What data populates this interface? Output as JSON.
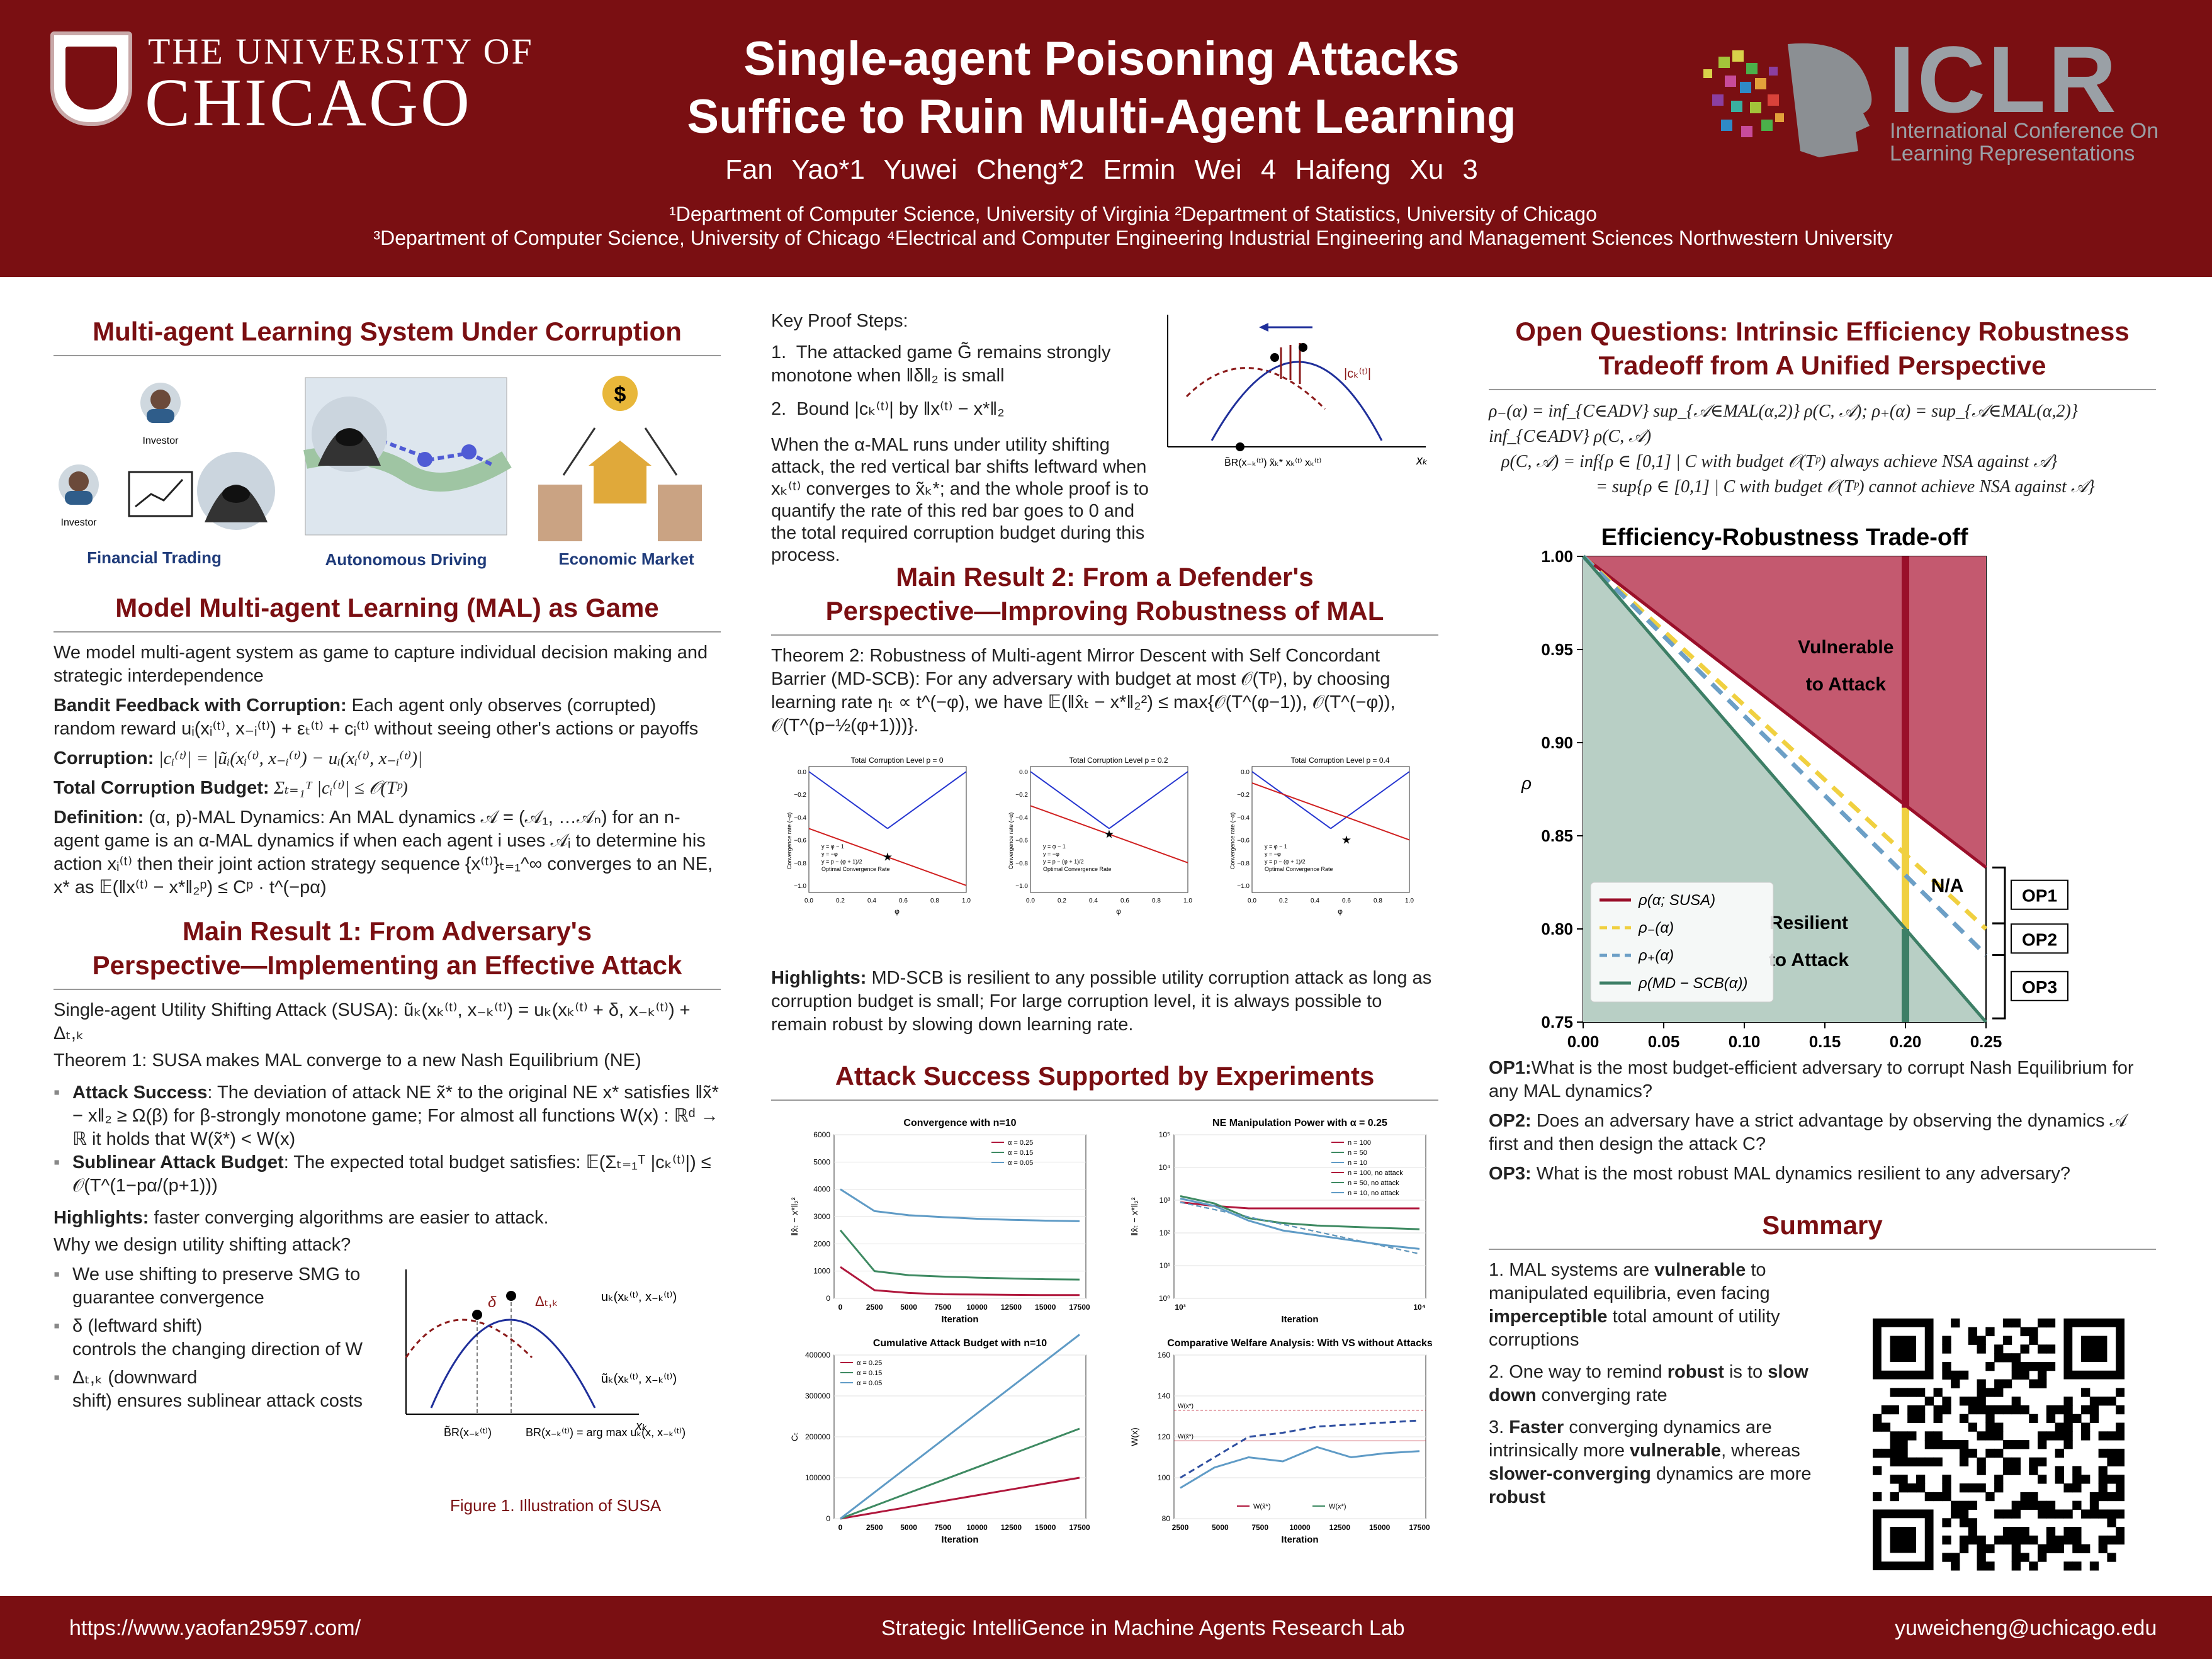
{
  "header": {
    "uni_top": "THE UNIVERSITY OF",
    "uni_big": "CHICAGO",
    "title_l1": "Single-agent Poisoning Attacks",
    "title_l2": "Suffice to Ruin Multi-Agent Learning",
    "authors": "Fan Yao*1   Yuwei Cheng*2   Ermin Wei 4   Haifeng Xu 3",
    "aff_line1": "¹Department of Computer Science, University of Virginia       ²Department of Statistics, University of Chicago",
    "aff_line2": "³Department of Computer Science, University of Chicago       ⁴Electrical and Computer Engineering Industrial Engineering and Management Sciences Northwestern University",
    "iclr": "ICLR",
    "iclr_sub1": "International Conference On",
    "iclr_sub2": "Learning Representations"
  },
  "col1": {
    "s1_title": "Multi-agent Learning System Under Corruption",
    "investor": "Investor",
    "fin": "Financial Trading",
    "auto": "Autonomous Driving",
    "econ": "Economic Market",
    "s2_title": "Model Multi-agent Learning (MAL) as Game",
    "s2_p1": "We model multi-agent system as game to capture individual decision making and strategic interdependence",
    "bandit_h": "Bandit Feedback with Corruption:",
    "bandit_t": " Each agent only observes (corrupted) random reward uᵢ(xᵢ⁽ᵗ⁾, x₋ᵢ⁽ᵗ⁾) + εₜ⁽ᵗ⁾ + cᵢ⁽ᵗ⁾ without seeing other's actions or payoffs",
    "corr_h": "Corruption:",
    "corr_t": " |cᵢ⁽ᵗ⁾| = |ũᵢ(xᵢ⁽ᵗ⁾, x₋ᵢ⁽ᵗ⁾) − uᵢ(xᵢ⁽ᵗ⁾, x₋ᵢ⁽ᵗ⁾)|",
    "tcb_h": "Total Corruption Budget:",
    "tcb_t": " Σₜ₌₁ᵀ |cᵢ⁽ᵗ⁾| ≤ 𝒪(Tᵖ)",
    "def_h": "Definition:",
    "def_t": " (α, p)-MAL Dynamics: An MAL dynamics 𝒜 = (𝒜₁, …𝒜ₙ) for an n-agent game is an α-MAL dynamics if when each agent i uses 𝒜ᵢ to determine his action xᵢ⁽ᵗ⁾ then their joint action strategy sequence {x⁽ᵗ⁾}ₜ₌₁^∞ converges to an NE, x* as 𝔼(‖x⁽ᵗ⁾ − x*‖₂ᵖ) ≤ Cᵖ · t^(−pα)",
    "s3_title_l1": "Main Result 1: From Adversary's",
    "s3_title_l2": "Perspective—Implementing an Effective Attack",
    "susa": "Single-agent Utility Shifting Attack (SUSA): ũₖ(xₖ⁽ᵗ⁾, x₋ₖ⁽ᵗ⁾) = uₖ(xₖ⁽ᵗ⁾ + δ, x₋ₖ⁽ᵗ⁾) + Δₜ,ₖ",
    "thm1": "Theorem 1: SUSA makes MAL converge to a new Nash Equilibrium (NE)",
    "b1_h": "Attack Success",
    "b1_t": ": The deviation of attack NE x̃* to the original NE x* satisfies ‖x̃* − x‖₂ ≥ Ω(β) for β-strongly monotone game; For almost all functions W(x) : ℝᵈ → ℝ it holds that W(x̃*) < W(x)",
    "b2_h": "Sublinear Attack Budget",
    "b2_t": ": The expected total budget satisfies: 𝔼(Σₜ₌₁ᵀ |cₖ⁽ᵗ⁾|) ≤ 𝒪(T^(1−pα/(p+1)))",
    "hl_h": "Highlights:",
    "hl_t": " faster converging algorithms are easier to attack.",
    "why": "Why we design utility shifting attack?",
    "w1": "We use shifting to preserve SMG to guarantee convergence",
    "w2a": "δ (leftward shift)",
    "w2b": "controls the changing direction of W",
    "w3a": "Δₜ,ₖ (downward",
    "w3b": "shift) ensures sublinear attack costs",
    "fig_delta": "δ",
    "fig_Delta": "Δₜ,ₖ",
    "fig_u": "uₖ(xₖ⁽ᵗ⁾, x₋ₖ⁽ᵗ⁾)",
    "fig_ut": "ũₖ(xₖ⁽ᵗ⁾, x₋ₖ⁽ᵗ⁾)",
    "fig_xk": "xₖ",
    "fig_br1": "B̃R(x₋ₖ⁽ᵗ⁾)",
    "fig_br2": "BR(x₋ₖ⁽ᵗ⁾) = arg max uₖ(x, x₋ₖ⁽ᵗ⁾)",
    "fig_caption": "Figure 1. Illustration of SUSA"
  },
  "col2": {
    "kps": "Key Proof Steps:",
    "k1": "The attacked game G̃ remains strongly monotone when ‖δ‖₂ is small",
    "k2": "Bound |cₖ⁽ᵗ⁾| by ‖x⁽ᵗ⁾ − x*‖₂",
    "k_para": "When the α-MAL runs under utility shifting attack, the red vertical bar shifts leftward when xₖ⁽ᵗ⁾ converges to x̃ₖ*; and the whole proof is to quantify the rate of this red bar goes to 0 and the total required corruption budget during this process.",
    "kfig_c": "|cₖ⁽ᵗ⁾|",
    "kfig_xk": "xₖ",
    "kfig_ticks": "B̃R(x₋ₖ⁽ᵗ⁾) x̃ₖ*  xₖ⁽ᵗ⁾  xₖ⁽ᵗ⁾",
    "s4_l1": "Main Result 2: From a Defender's",
    "s4_l2": "Perspective—Improving Robustness of MAL",
    "thm2_h": "Theorem 2: Robustness of Multi-agent Mirror Descent with Self Concordant Barrier (MD-SCB)",
    "thm2_t": ": For any adversary with budget at most 𝒪(Tᵖ), by choosing learning rate ηₜ ∝ t^(−φ), we have 𝔼(‖x̂ₜ − x*‖₂²) ≤ max{𝒪(T^(φ−1)), 𝒪(T^(−φ)), 𝒪(T^(p−½(φ+1)))}.",
    "hl2_h": "Highlights:",
    "hl2_t": " MD-SCB is resilient to any possible utility corruption attack as long as corruption budget is small; For large corruption level, it is always possible to remain robust by slowing down learning rate.",
    "s5_title": "Attack Success Supported by Experiments",
    "mini_titles": [
      "Total Corruption Level p = 0",
      "Total Corruption Level p = 0.2",
      "Total Corruption Level p = 0.4"
    ],
    "mini_legend": [
      "y = φ − 1",
      "y = −φ",
      "y = p − (φ + 1)/2",
      "Optimal Convergence Rate"
    ],
    "mini_xlabel": "φ",
    "mini_ylabel": "Convergence rate (−α)",
    "mini_yticks": [
      "0.0",
      "−0.2",
      "−0.4",
      "−0.6",
      "−0.8",
      "−1.0"
    ],
    "mini_xticks": [
      "0.0",
      "0.2",
      "0.4",
      "0.6",
      "0.8",
      "1.0"
    ],
    "e1_title": "Convergence with n=10",
    "e1_legend": [
      "α = 0.25",
      "α = 0.15",
      "α = 0.05"
    ],
    "e1_yticks": [
      "6000",
      "5000",
      "4000",
      "3000",
      "2000",
      "1000",
      "0"
    ],
    "e1_ylabel": "‖x̂ₜ − x*‖₂²",
    "e2_title": "NE Manipulation Power with α = 0.25",
    "e2_legend": [
      "n = 100",
      "n = 50",
      "n = 10",
      "n = 100, no attack",
      "n = 50, no attack",
      "n = 10, no attack"
    ],
    "e2_yticks": [
      "10⁵",
      "10⁴",
      "10³",
      "10²",
      "10¹",
      "10⁰"
    ],
    "e2_xticks": [
      "10³",
      "10⁴"
    ],
    "e2_ylabel": "‖x̂ₜ − x*‖₂²",
    "e3_title": "Cumulative Attack Budget with n=10",
    "e3_legend": [
      "α = 0.25",
      "α = 0.15",
      "α = 0.05"
    ],
    "e3_yticks": [
      "400000",
      "300000",
      "200000",
      "100000",
      "0"
    ],
    "e3_ylabel": "Cₜ",
    "e4_title": "Comparative Welfare Analysis: With VS without Attacks",
    "e4_legend": [
      "W(x̃*)",
      "W(x*)"
    ],
    "e4_yticks": [
      "160",
      "140",
      "120",
      "100",
      "80"
    ],
    "e4_ylabel": "W(x)",
    "e4_ann1": "W(x*)",
    "e4_ann2": "W(x̃*)",
    "exp_xticks": [
      "2500",
      "5000",
      "7500",
      "10000",
      "12500",
      "15000",
      "17500"
    ],
    "exp_xticks0": [
      "0",
      "2500",
      "5000",
      "7500",
      "10000",
      "12500",
      "15000",
      "17500"
    ],
    "exp_xlabel": "Iteration"
  },
  "col3": {
    "s6_l1": "Open Questions: Intrinsic Efficiency Robustness",
    "s6_l2": "Tradeoff from A Unified Perspective",
    "eq1": "ρ₋(α) = inf_{C∈ADV} sup_{𝒜∈MAL(α,2)} ρ(C, 𝒜);  ρ₊(α) = sup_{𝒜∈MAL(α,2)} inf_{C∈ADV} ρ(C, 𝒜)",
    "eq2": "ρ(C, 𝒜) = inf{ρ ∈ [0,1] | C with budget 𝒪(Tᵖ) always achieve NSA against 𝒜}",
    "eq3": "= sup{ρ ∈ [0,1] | C with budget 𝒪(Tᵖ) cannot achieve NSA against 𝒜}",
    "chart_title": "Efficiency-Robustness Trade-off",
    "vuln_l1": "Vulnerable",
    "vuln_l2": "to Attack",
    "res_l1": "Resilient",
    "res_l2": "to Attack",
    "na": "N/A",
    "op1_lbl": "OP1",
    "op2_lbl": "OP2",
    "op3_lbl": "OP3",
    "x_axis": "α",
    "y_axis": "ρ",
    "xticks": [
      "0.00",
      "0.05",
      "0.10",
      "0.15",
      "0.20",
      "0.25"
    ],
    "yticks": [
      "1.00",
      "0.95",
      "0.90",
      "0.85",
      "0.80",
      "0.75"
    ],
    "legend": [
      "ρ(α; SUSA)",
      "ρ₋(α)",
      "ρ₊(α)",
      "ρ(MD − SCB(α))"
    ],
    "op1_h": "OP1:",
    "op1_t": "What is the most budget-efficient adversary to corrupt Nash Equilibrium for any MAL dynamics?",
    "op2_h": "OP2:",
    "op2_t": " Does an adversary have a strict advantage by observing the dynamics 𝒜 first and then design the attack C?",
    "op3_h": "OP3:",
    "op3_t": " What is the most robust MAL dynamics resilient to any adversary?",
    "sum_title": "Summary",
    "sum1a": "1. MAL systems are ",
    "sum1b": "vulnerable",
    "sum1c": " to manipulated equilibria, even facing ",
    "sum1d": "imperceptible",
    "sum1e": " total amount of utility corruptions",
    "sum2a": "2.  One way to remind ",
    "sum2b": "robust",
    "sum2c": " is to ",
    "sum2d": "slow down",
    "sum2e": " converging rate",
    "sum3a": "3.  ",
    "sum3b": "Faster",
    "sum3c": " converging dynamics are intrinsically more ",
    "sum3d": "vulnerable",
    "sum3e": ", whereas ",
    "sum3f": "slower-converging",
    "sum3g": " dynamics are more ",
    "sum3h": "robust"
  },
  "chart_data": {
    "type": "area",
    "title": "Efficiency-Robustness Trade-off",
    "xlabel": "α",
    "ylabel": "ρ",
    "xlim": [
      0,
      0.25
    ],
    "ylim": [
      0.75,
      1.0
    ],
    "series": [
      {
        "name": "ρ(α; SUSA)",
        "x": [
          0,
          0.25
        ],
        "y": [
          1.0,
          0.833
        ]
      },
      {
        "name": "ρ₋(α)",
        "x": [
          0,
          0.25
        ],
        "y": [
          1.0,
          0.8
        ]
      },
      {
        "name": "ρ₊(α)",
        "x": [
          0,
          0.25
        ],
        "y": [
          1.0,
          0.786
        ]
      },
      {
        "name": "ρ(MD − SCB(α))",
        "x": [
          0,
          0.25
        ],
        "y": [
          1.0,
          0.75
        ]
      }
    ],
    "vertical_line": 0.2,
    "legend_position": "lower-left"
  },
  "footer": {
    "left": "https://www.yaofan29597.com/",
    "center": "Strategic IntelliGence in Machine Agents Research Lab",
    "right": "yuweicheng@uchicago.edu"
  },
  "colors": {
    "maroon": "#7a0f12",
    "accent": "#7a0f12"
  }
}
